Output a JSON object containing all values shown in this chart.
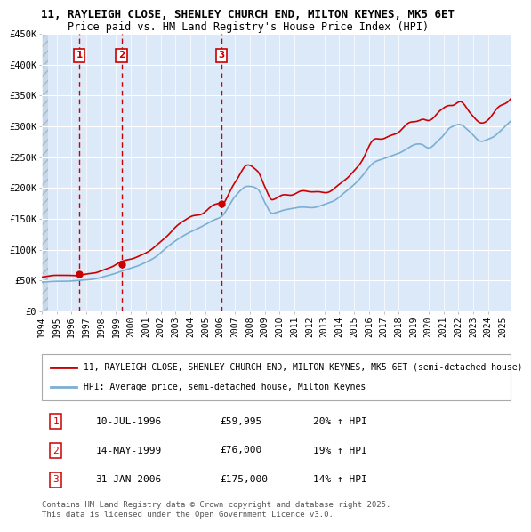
{
  "title1": "11, RAYLEIGH CLOSE, SHENLEY CHURCH END, MILTON KEYNES, MK5 6ET",
  "title2": "Price paid vs. HM Land Registry's House Price Index (HPI)",
  "ylim": [
    0,
    450000
  ],
  "yticks": [
    0,
    50000,
    100000,
    150000,
    200000,
    250000,
    300000,
    350000,
    400000,
    450000
  ],
  "ytick_labels": [
    "£0",
    "£50K",
    "£100K",
    "£150K",
    "£200K",
    "£250K",
    "£300K",
    "£350K",
    "£400K",
    "£450K"
  ],
  "xlim_start": 1994.0,
  "xlim_end": 2025.5,
  "sale_dates": [
    1996.53,
    1999.37,
    2006.08
  ],
  "sale_prices": [
    59995,
    76000,
    175000
  ],
  "sale_labels": [
    "1",
    "2",
    "3"
  ],
  "sale_date_strs": [
    "10-JUL-1996",
    "14-MAY-1999",
    "31-JAN-2006"
  ],
  "sale_price_strs": [
    "£59,995",
    "£76,000",
    "£175,000"
  ],
  "sale_hpi_strs": [
    "20% ↑ HPI",
    "19% ↑ HPI",
    "14% ↑ HPI"
  ],
  "red_color": "#cc0000",
  "blue_color": "#7aafd4",
  "legend1": "11, RAYLEIGH CLOSE, SHENLEY CHURCH END, MILTON KEYNES, MK5 6ET (semi-detached house)",
  "legend2": "HPI: Average price, semi-detached house, Milton Keynes",
  "footer": "Contains HM Land Registry data © Crown copyright and database right 2025.\nThis data is licensed under the Open Government Licence v3.0.",
  "background_color": "#dce9f8",
  "grid_color": "#ffffff"
}
